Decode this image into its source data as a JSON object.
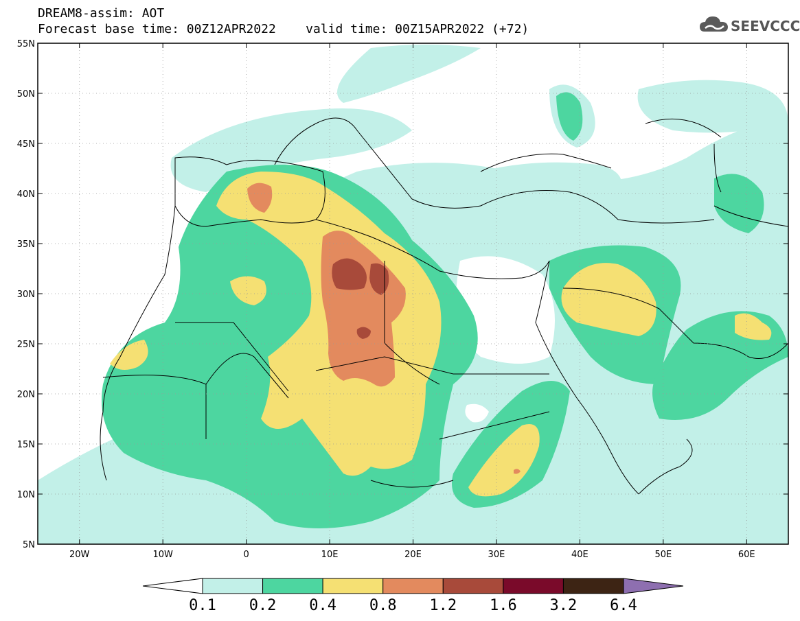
{
  "header": {
    "line1": "DREAM8-assim: AOT",
    "line2": "Forecast base time: 00Z12APR2022    valid time: 00Z15APR2022 (+72)"
  },
  "logo": {
    "text": "SEEVCCC",
    "icon": "cloud-icon"
  },
  "map": {
    "lon_range": [
      -25,
      65
    ],
    "lat_range": [
      5,
      55
    ],
    "lon_ticks": [
      {
        "v": -20,
        "label": "20W"
      },
      {
        "v": -10,
        "label": "10W"
      },
      {
        "v": 0,
        "label": "0"
      },
      {
        "v": 10,
        "label": "10E"
      },
      {
        "v": 20,
        "label": "20E"
      },
      {
        "v": 30,
        "label": "30E"
      },
      {
        "v": 40,
        "label": "40E"
      },
      {
        "v": 50,
        "label": "50E"
      },
      {
        "v": 60,
        "label": "60E"
      }
    ],
    "lat_ticks": [
      {
        "v": 55,
        "label": "55N"
      },
      {
        "v": 50,
        "label": "50N"
      },
      {
        "v": 45,
        "label": "45N"
      },
      {
        "v": 40,
        "label": "40N"
      },
      {
        "v": 35,
        "label": "35N"
      },
      {
        "v": 30,
        "label": "30N"
      },
      {
        "v": 25,
        "label": "25N"
      },
      {
        "v": 20,
        "label": "20N"
      },
      {
        "v": 15,
        "label": "15N"
      },
      {
        "v": 10,
        "label": "10N"
      },
      {
        "v": 5,
        "label": "5N"
      }
    ],
    "grid": true
  },
  "colorbar": {
    "levels": [
      "0.1",
      "0.2",
      "0.4",
      "0.8",
      "1.2",
      "1.6",
      "3.2",
      "6.4"
    ],
    "colors": [
      "#ffffff",
      "#c2f0e8",
      "#4dd6a0",
      "#f5e073",
      "#e38a5e",
      "#a84a3a",
      "#7a0a2a",
      "#3d2414",
      "#8e6fb0"
    ]
  }
}
